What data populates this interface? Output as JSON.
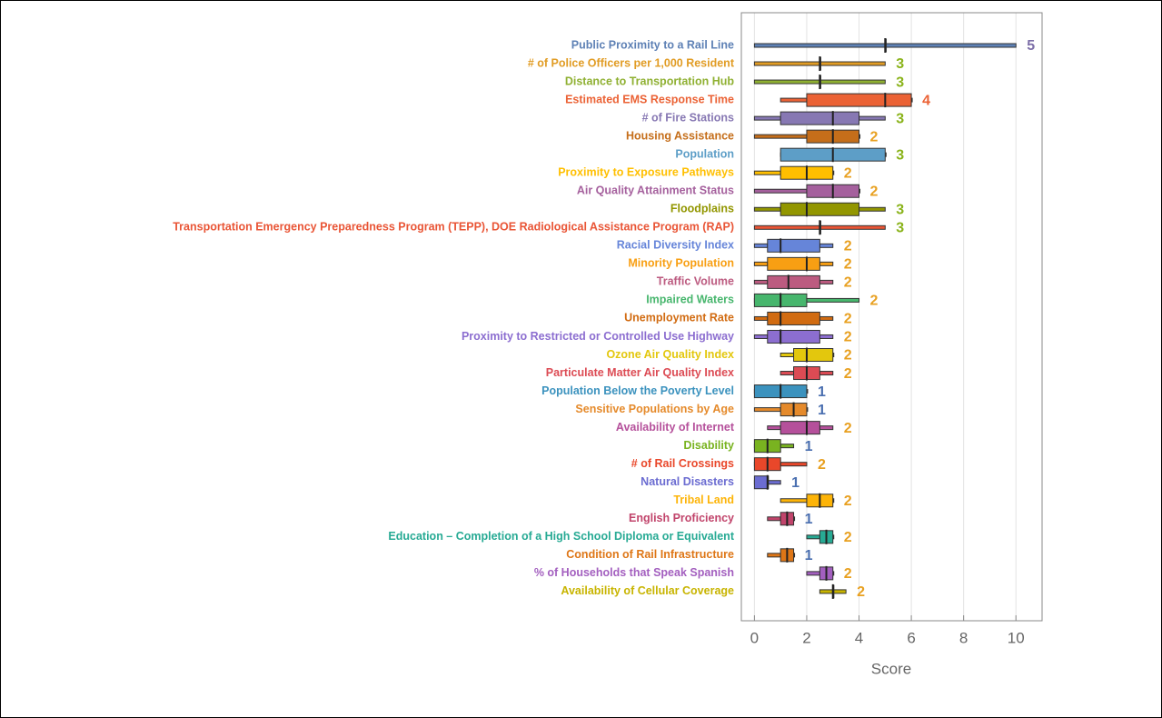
{
  "chart_data": {
    "type": "box",
    "x_label": "Score",
    "xlim": [
      -0.5,
      11
    ],
    "xticks": [
      0,
      2,
      4,
      6,
      8,
      10
    ],
    "grid": true,
    "rows": [
      {
        "label": "Public Proximity to a Rail Line",
        "color": "#5e81b5",
        "min": 0,
        "q1": 5,
        "median": 5,
        "q3": 5,
        "max": 10,
        "annotation": 5,
        "annotation_color": "#7d6fa8"
      },
      {
        "label": "# of Police Officers per 1,000 Resident",
        "color": "#e19c24",
        "min": 0,
        "q1": 2.5,
        "median": 2.5,
        "q3": 2.5,
        "max": 5,
        "annotation": 3,
        "annotation_color": "#8ab31a"
      },
      {
        "label": "Distance to Transportation Hub",
        "color": "#8fb032",
        "min": 0,
        "q1": 2.5,
        "median": 2.5,
        "q3": 2.5,
        "max": 5,
        "annotation": 3,
        "annotation_color": "#8ab31a"
      },
      {
        "label": "Estimated EMS Response Time",
        "color": "#eb6235",
        "min": 1,
        "q1": 2,
        "median": 5,
        "q3": 6,
        "max": 6,
        "annotation": 4,
        "annotation_color": "#eb6235"
      },
      {
        "label": "# of Fire Stations",
        "color": "#8778b3",
        "min": 0,
        "q1": 1,
        "median": 3,
        "q3": 4,
        "max": 5,
        "annotation": 3,
        "annotation_color": "#8ab31a"
      },
      {
        "label": "Housing Assistance",
        "color": "#c56e1a",
        "min": 0,
        "q1": 2,
        "median": 3,
        "q3": 4,
        "max": 4,
        "annotation": 2,
        "annotation_color": "#e8a020"
      },
      {
        "label": "Population",
        "color": "#5d9ec7",
        "min": 1,
        "q1": 1,
        "median": 3,
        "q3": 5,
        "max": 5,
        "annotation": 3,
        "annotation_color": "#8ab31a"
      },
      {
        "label": "Proximity to Exposure Pathways",
        "color": "#ffbf00",
        "min": 0,
        "q1": 1,
        "median": 2,
        "q3": 3,
        "max": 3,
        "annotation": 2,
        "annotation_color": "#e8a020"
      },
      {
        "label": "Air Quality Attainment Status",
        "color": "#a5609d",
        "min": 0,
        "q1": 2,
        "median": 3,
        "q3": 4,
        "max": 4,
        "annotation": 2,
        "annotation_color": "#e8a020"
      },
      {
        "label": "Floodplains",
        "color": "#929600",
        "min": 0,
        "q1": 1,
        "median": 2,
        "q3": 4,
        "max": 5,
        "annotation": 3,
        "annotation_color": "#8ab31a"
      },
      {
        "label": "Transportation Emergency Preparedness Program (TEPP), DOE Radiological Assistance Program (RAP)",
        "color": "#e95536",
        "min": 0,
        "q1": 2.5,
        "median": 2.5,
        "q3": 2.5,
        "max": 5,
        "annotation": 3,
        "annotation_color": "#8ab31a"
      },
      {
        "label": "Racial Diversity Index",
        "color": "#6685d9",
        "min": 0,
        "q1": 0.5,
        "median": 1,
        "q3": 2.5,
        "max": 3,
        "annotation": 2,
        "annotation_color": "#e8a020"
      },
      {
        "label": "Minority Population",
        "color": "#f89f13",
        "min": 0,
        "q1": 0.5,
        "median": 2,
        "q3": 2.5,
        "max": 3,
        "annotation": 2,
        "annotation_color": "#e8a020"
      },
      {
        "label": "Traffic Volume",
        "color": "#bc5b80",
        "min": 0,
        "q1": 0.5,
        "median": 1.3,
        "q3": 2.5,
        "max": 3,
        "annotation": 2,
        "annotation_color": "#e8a020"
      },
      {
        "label": "Impaired Waters",
        "color": "#47b66d",
        "min": 0,
        "q1": 0,
        "median": 1,
        "q3": 2,
        "max": 4,
        "annotation": 2,
        "annotation_color": "#e8a020"
      },
      {
        "label": "Unemployment Rate",
        "color": "#d16b11",
        "min": 0,
        "q1": 0.5,
        "median": 1,
        "q3": 2.5,
        "max": 3,
        "annotation": 2,
        "annotation_color": "#e8a020"
      },
      {
        "label": "Proximity to Restricted or Controlled Use Highway ",
        "color": "#8c6ed0",
        "min": 0,
        "q1": 0.5,
        "median": 1,
        "q3": 2.5,
        "max": 3,
        "annotation": 2,
        "annotation_color": "#e8a020"
      },
      {
        "label": "Ozone Air Quality Index",
        "color": "#e3c70d",
        "min": 1,
        "q1": 1.5,
        "median": 2,
        "q3": 3,
        "max": 3,
        "annotation": 2,
        "annotation_color": "#e8a020"
      },
      {
        "label": "Particulate Matter Air Quality Index",
        "color": "#dc4b54",
        "min": 1,
        "q1": 1.5,
        "median": 2,
        "q3": 2.5,
        "max": 3,
        "annotation": 2,
        "annotation_color": "#e8a020"
      },
      {
        "label": "Population Below the Poverty Level",
        "color": "#3b92be",
        "min": 0,
        "q1": 0,
        "median": 1,
        "q3": 2,
        "max": 2,
        "annotation": 1,
        "annotation_color": "#4a6fb0"
      },
      {
        "label": "Sensitive Populations by Age",
        "color": "#e58a2b",
        "min": 0,
        "q1": 1,
        "median": 1.5,
        "q3": 2,
        "max": 2,
        "annotation": 1,
        "annotation_color": "#4a6fb0"
      },
      {
        "label": "Availability of Internet",
        "color": "#b5509b",
        "min": 0.5,
        "q1": 1,
        "median": 2,
        "q3": 2.5,
        "max": 3,
        "annotation": 2,
        "annotation_color": "#e8a020"
      },
      {
        "label": "Disability",
        "color": "#79b320",
        "min": 0,
        "q1": 0,
        "median": 0.5,
        "q3": 1,
        "max": 1.5,
        "annotation": 1,
        "annotation_color": "#4a6fb0"
      },
      {
        "label": "# of Rail Crossings",
        "color": "#e9472a",
        "min": 0,
        "q1": 0,
        "median": 0.5,
        "q3": 1,
        "max": 2,
        "annotation": 2,
        "annotation_color": "#e8a020"
      },
      {
        "label": "Natural Disasters",
        "color": "#6b6cd1",
        "min": 0,
        "q1": 0,
        "median": 0.5,
        "q3": 0.5,
        "max": 1,
        "annotation": 1,
        "annotation_color": "#4a6fb0"
      },
      {
        "label": "Tribal Land",
        "color": "#fdb408",
        "min": 1,
        "q1": 2,
        "median": 2.5,
        "q3": 3,
        "max": 3,
        "annotation": 2,
        "annotation_color": "#e8a020"
      },
      {
        "label": "English Proficiency",
        "color": "#c1446b",
        "min": 0.5,
        "q1": 1,
        "median": 1.25,
        "q3": 1.5,
        "max": 1.5,
        "annotation": 1,
        "annotation_color": "#4a6fb0"
      },
      {
        "label": "Education – Completion of a High School Diploma or Equivalent",
        "color": "#27aa94",
        "min": 2,
        "q1": 2.5,
        "median": 2.75,
        "q3": 3,
        "max": 3,
        "annotation": 2,
        "annotation_color": "#e8a020"
      },
      {
        "label": "Condition of Rail Infrastructure",
        "color": "#de7616",
        "min": 0.5,
        "q1": 1,
        "median": 1.25,
        "q3": 1.5,
        "max": 1.5,
        "annotation": 1,
        "annotation_color": "#4a6fb0"
      },
      {
        "label": "% of Households that Speak Spanish",
        "color": "#a35fbf",
        "min": 2,
        "q1": 2.5,
        "median": 2.75,
        "q3": 3,
        "max": 3,
        "annotation": 2,
        "annotation_color": "#e8a020"
      },
      {
        "label": "Availability of Cellular Coverage",
        "color": "#c8b400",
        "min": 2.5,
        "q1": 3,
        "median": 3,
        "q3": 3,
        "max": 3.5,
        "annotation": 2,
        "annotation_color": "#e8a020"
      }
    ]
  }
}
